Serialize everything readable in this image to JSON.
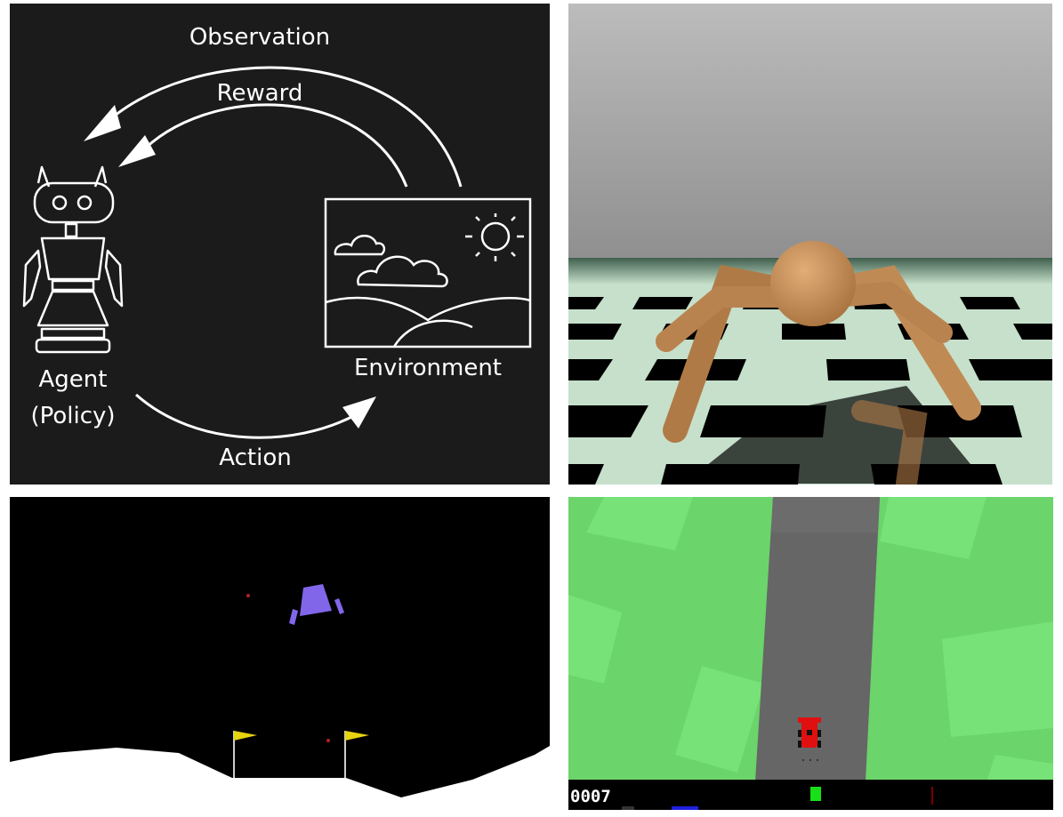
{
  "diagram": {
    "labels": {
      "observation": "Observation",
      "reward": "Reward",
      "agent_line1": "Agent",
      "agent_line2": "(Policy)",
      "environment": "Environment",
      "action": "Action"
    },
    "colors": {
      "background": "#1b1b1b",
      "stroke": "#ffffff"
    },
    "icons": [
      "robot-icon",
      "sun-icon",
      "cloud-icon",
      "hills-icon"
    ]
  },
  "ant_scene": {
    "colors": {
      "sky": "#9a9a9a",
      "body": "#c8905c",
      "floor_light": "#c6e0cb",
      "floor_dark": "#000000"
    }
  },
  "lander_scene": {
    "colors": {
      "sky": "#000000",
      "ground": "#ffffff",
      "lander": "#8266ea",
      "flag": "#e6d40e"
    }
  },
  "car_scene": {
    "hud": {
      "score": "0007"
    },
    "colors": {
      "grass": "#6bd46b",
      "road": "#666666",
      "car": "#e01010",
      "hud_bg": "#000000"
    }
  }
}
